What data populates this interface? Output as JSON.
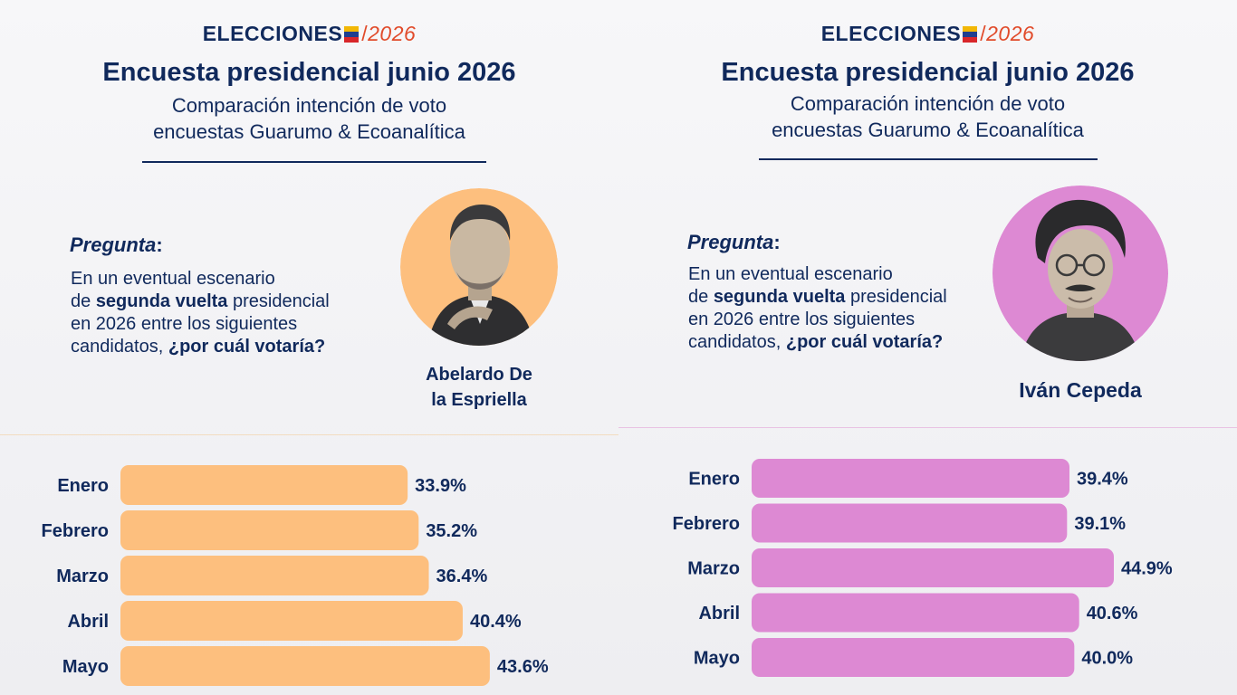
{
  "left": {
    "logo": {
      "word": "ELECCIONES",
      "slash": "/",
      "year": "2026"
    },
    "title": "Encuesta presidencial junio 2026",
    "subtitle_line1": "Comparación intención de voto",
    "subtitle_line2": "encuestas Guarumo & Ecoanalítica",
    "question_label": "Pregunta",
    "question_colon": ":",
    "question": {
      "l1": "En un eventual escenario",
      "l2a": "de ",
      "l2b": "segunda vuelta",
      "l2c": " presidencial",
      "l3": "en 2026 entre los siguientes",
      "l4a": "candidatos, ",
      "l4b": "¿por cuál votaría?"
    },
    "candidate_line1": "Abelardo De",
    "candidate_line2": "la Espriella",
    "accent_color": "#fdbf7e",
    "chart_data": {
      "type": "bar",
      "orientation": "horizontal",
      "categories": [
        "Enero",
        "Febrero",
        "Marzo",
        "Abril",
        "Mayo"
      ],
      "values": [
        33.9,
        35.2,
        36.4,
        40.4,
        43.6
      ],
      "value_labels": [
        "33.9%",
        "35.2%",
        "36.4%",
        "40.4%",
        "43.6%"
      ],
      "bar_color": "#fdbf7e"
    }
  },
  "right": {
    "logo": {
      "word": "ELECCIONES",
      "slash": "/",
      "year": "2026"
    },
    "title": "Encuesta presidencial junio 2026",
    "subtitle_line1": "Comparación intención de voto",
    "subtitle_line2": "encuestas Guarumo & Ecoanalítica",
    "question_label": "Pregunta",
    "question_colon": ":",
    "question": {
      "l1": "En un eventual escenario",
      "l2a": "de ",
      "l2b": "segunda vuelta",
      "l2c": " presidencial",
      "l3": "en 2026 entre los siguientes",
      "l4a": "candidatos, ",
      "l4b": "¿por cuál votaría?"
    },
    "candidate_line1": "Iván Cepeda",
    "accent_color": "#dd89d3",
    "chart_data": {
      "type": "bar",
      "orientation": "horizontal",
      "categories": [
        "Enero",
        "Febrero",
        "Marzo",
        "Abril",
        "Mayo"
      ],
      "values": [
        39.4,
        39.1,
        44.9,
        40.6,
        40.0
      ],
      "value_labels": [
        "39.4%",
        "39.1%",
        "44.9%",
        "40.6%",
        "40.0%"
      ],
      "bar_color": "#dd89d3"
    }
  }
}
